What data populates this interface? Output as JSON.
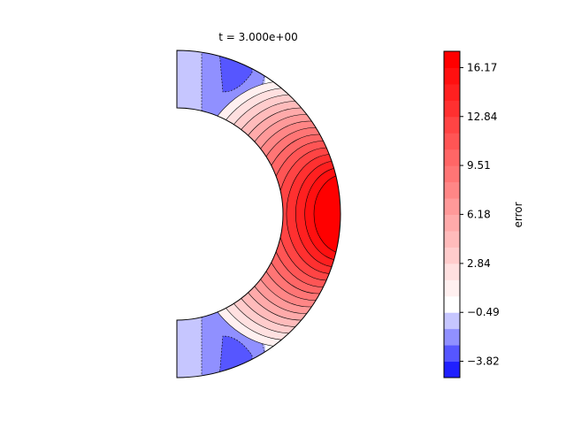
{
  "chart_data": [
    {
      "type": "heatmap",
      "title": "t = 3.000e+00",
      "geometry": "half-annulus (meridional slice, right half)",
      "levels": [
        -4.93,
        -3.82,
        -2.71,
        -1.6,
        -0.49,
        0.62,
        1.73,
        2.84,
        3.95,
        5.07,
        6.18,
        7.29,
        8.4,
        9.51,
        10.62,
        11.73,
        12.84,
        13.95,
        15.06,
        16.17,
        17.28
      ],
      "colors": [
        "#2020ff",
        "#5656ff",
        "#9090ff",
        "#c6c6ff",
        "#ffffff",
        "#fff0f0",
        "#ffe0e0",
        "#ffcccc",
        "#ffbbbb",
        "#ffaaaa",
        "#ff9999",
        "#ff8686",
        "#ff7575",
        "#ff6666",
        "#ff5555",
        "#ff4444",
        "#ff3030",
        "#ff2020",
        "#ff1010",
        "#ff0000"
      ],
      "regions": [
        {
          "label": "negative lobe, upper",
          "min_value": -4.5,
          "colatitude_deg": [
            0,
            55
          ]
        },
        {
          "label": "positive maximum, equator",
          "max_value": 17.2,
          "colatitude_deg": [
            55,
            125
          ]
        },
        {
          "label": "negative lobe, lower",
          "min_value": -4.5,
          "colatitude_deg": [
            125,
            180
          ]
        }
      ]
    },
    {
      "type": "colorbar",
      "label": "error",
      "ticks": [
        "16.17",
        "12.84",
        "9.51",
        "6.18",
        "2.84",
        "−0.49",
        "−3.82"
      ],
      "tick_values": [
        16.17,
        12.84,
        9.51,
        6.18,
        2.84,
        -0.49,
        -3.82
      ],
      "range": [
        -4.93,
        17.28
      ]
    }
  ]
}
